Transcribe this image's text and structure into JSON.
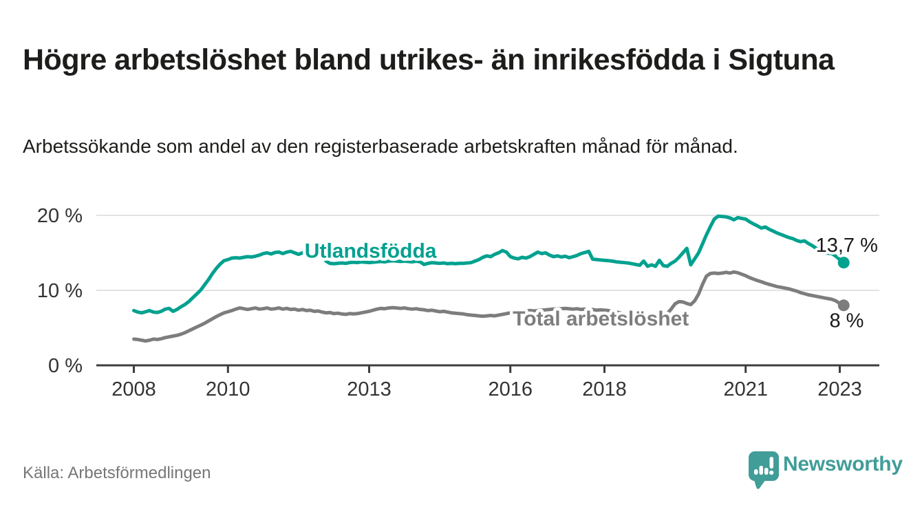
{
  "header": {
    "title": "Högre arbetslöshet bland utrikes- än inrikesfödda i Sigtuna",
    "subtitle": "Arbetssökande som andel av den registerbaserade arbetskraften månad för månad."
  },
  "footer": {
    "source": "Källa: Arbetsförmedlingen",
    "logo_text": "Newsworthy"
  },
  "colors": {
    "teal": "#00a18f",
    "gray": "#7d7d7d",
    "grid": "#d9d9d9",
    "axis": "#3d3d3d",
    "tick_text": "#333333",
    "annotation_text": "#1a1a1a",
    "logo_teal": "#419d98",
    "background": "#ffffff"
  },
  "chart_data": {
    "type": "line",
    "title": "Högre arbetslöshet bland utrikes- än inrikesfödda i Sigtuna",
    "x_unit": "month",
    "x_start_year": 2008,
    "x_end_label": "2023-02",
    "grid": "horizontal",
    "legend_position": "inline-labels",
    "y_axis": {
      "ticks": [
        0,
        10,
        20
      ],
      "tick_labels": [
        "0 %",
        "10 %",
        "20 %"
      ],
      "range": [
        0,
        21
      ]
    },
    "x_axis": {
      "ticks": [
        {
          "year": 2008,
          "label": "2008"
        },
        {
          "year": 2010,
          "label": "2010"
        },
        {
          "year": 2013,
          "label": "2013"
        },
        {
          "year": 2016,
          "label": "2016"
        },
        {
          "year": 2018,
          "label": "2018"
        },
        {
          "year": 2021,
          "label": "2021"
        },
        {
          "year": 2023,
          "label": "2023"
        }
      ]
    },
    "series": [
      {
        "name": "Utlandsfödda",
        "color": "#00a18f",
        "label_color": "#00a18f",
        "end_value_display": "13,7 %",
        "line_label": {
          "text": "Utlandsfödda",
          "year": 2011.63,
          "value": 15.3
        },
        "end_label": {
          "text": "13,7 %",
          "year": 2022.49,
          "value": 16.05
        },
        "values": [
          7.3,
          7.1,
          7.0,
          7.15,
          7.3,
          7.1,
          7.05,
          7.2,
          7.5,
          7.6,
          7.2,
          7.45,
          7.8,
          8.1,
          8.5,
          9.0,
          9.5,
          10.0,
          10.7,
          11.4,
          12.2,
          12.9,
          13.5,
          13.95,
          14.1,
          14.3,
          14.35,
          14.3,
          14.4,
          14.5,
          14.45,
          14.55,
          14.7,
          14.9,
          15.0,
          14.85,
          15.05,
          15.1,
          14.9,
          15.1,
          15.2,
          15.0,
          14.8,
          15.0,
          15.1,
          14.7,
          14.9,
          14.6,
          14.7,
          13.9,
          13.6,
          13.55,
          13.6,
          13.65,
          13.6,
          13.7,
          13.75,
          13.7,
          13.8,
          13.75,
          13.7,
          13.75,
          13.8,
          13.85,
          13.8,
          13.9,
          13.95,
          13.9,
          13.85,
          13.9,
          13.85,
          13.8,
          13.9,
          13.8,
          13.45,
          13.6,
          13.7,
          13.65,
          13.6,
          13.65,
          13.55,
          13.6,
          13.55,
          13.6,
          13.6,
          13.65,
          13.7,
          13.9,
          14.1,
          14.4,
          14.6,
          14.5,
          14.8,
          15.0,
          15.3,
          15.1,
          14.5,
          14.3,
          14.2,
          14.4,
          14.3,
          14.5,
          14.8,
          15.1,
          14.9,
          15.0,
          14.7,
          14.5,
          14.6,
          14.45,
          14.55,
          14.35,
          14.5,
          14.65,
          14.9,
          15.05,
          15.2,
          14.15,
          14.1,
          14.05,
          14.0,
          13.95,
          13.9,
          13.8,
          13.75,
          13.7,
          13.65,
          13.55,
          13.45,
          13.35,
          13.9,
          13.2,
          13.4,
          13.2,
          14.0,
          13.3,
          13.2,
          13.6,
          13.9,
          14.4,
          15.0,
          15.6,
          13.4,
          14.2,
          15.0,
          16.2,
          17.4,
          18.5,
          19.5,
          19.9,
          19.85,
          19.8,
          19.65,
          19.4,
          19.7,
          19.6,
          19.5,
          19.15,
          18.85,
          18.6,
          18.3,
          18.45,
          18.15,
          17.9,
          17.65,
          17.45,
          17.25,
          17.05,
          16.9,
          16.65,
          16.5,
          16.6,
          16.25,
          15.95,
          15.6,
          15.2,
          15.0,
          14.95,
          14.9,
          14.55,
          14.1,
          13.7
        ]
      },
      {
        "name": "Total arbetslöshet",
        "color": "#7d7d7d",
        "label_color": "#7d7d7d",
        "end_value_display": "8 %",
        "line_label": {
          "text": "Total arbetslöshet",
          "year": 2016.05,
          "value": 6.3
        },
        "end_label": {
          "text": "8 %",
          "year": 2022.78,
          "value": 6.0
        },
        "values": [
          3.5,
          3.45,
          3.35,
          3.25,
          3.35,
          3.5,
          3.45,
          3.55,
          3.7,
          3.8,
          3.9,
          4.0,
          4.15,
          4.35,
          4.6,
          4.85,
          5.1,
          5.35,
          5.6,
          5.9,
          6.2,
          6.5,
          6.75,
          7.0,
          7.15,
          7.3,
          7.5,
          7.65,
          7.55,
          7.45,
          7.55,
          7.65,
          7.5,
          7.55,
          7.65,
          7.5,
          7.55,
          7.65,
          7.5,
          7.6,
          7.45,
          7.5,
          7.35,
          7.45,
          7.3,
          7.35,
          7.2,
          7.25,
          7.1,
          7.0,
          7.05,
          6.9,
          6.95,
          6.85,
          6.8,
          6.9,
          6.85,
          6.9,
          7.0,
          7.1,
          7.2,
          7.35,
          7.5,
          7.6,
          7.55,
          7.65,
          7.7,
          7.65,
          7.6,
          7.65,
          7.55,
          7.5,
          7.55,
          7.45,
          7.4,
          7.3,
          7.35,
          7.25,
          7.15,
          7.2,
          7.1,
          7.0,
          6.95,
          6.9,
          6.85,
          6.75,
          6.7,
          6.65,
          6.6,
          6.55,
          6.6,
          6.65,
          6.6,
          6.7,
          6.8,
          6.9,
          7.0,
          7.1,
          7.15,
          7.2,
          7.25,
          7.3,
          7.25,
          7.3,
          7.35,
          7.4,
          7.45,
          7.5,
          7.5,
          7.55,
          7.6,
          7.55,
          7.5,
          7.55,
          7.45,
          7.5,
          7.4,
          7.45,
          7.35,
          7.4,
          7.35,
          7.3,
          7.2,
          7.1,
          7.0,
          6.9,
          6.85,
          6.8,
          6.7,
          6.6,
          6.55,
          6.5,
          6.45,
          6.35,
          6.3,
          6.5,
          6.9,
          7.5,
          8.2,
          8.5,
          8.45,
          8.25,
          8.1,
          8.6,
          9.5,
          10.8,
          11.9,
          12.25,
          12.3,
          12.25,
          12.3,
          12.4,
          12.3,
          12.45,
          12.35,
          12.15,
          11.95,
          11.7,
          11.5,
          11.3,
          11.15,
          10.95,
          10.8,
          10.65,
          10.5,
          10.4,
          10.3,
          10.2,
          10.05,
          9.9,
          9.7,
          9.55,
          9.4,
          9.3,
          9.2,
          9.1,
          9.0,
          8.9,
          8.8,
          8.6,
          8.25,
          8.0
        ]
      }
    ]
  }
}
